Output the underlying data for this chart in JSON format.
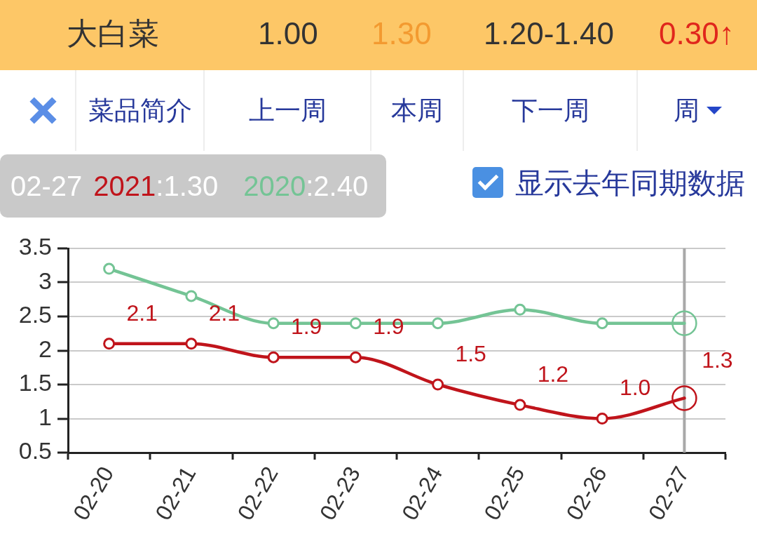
{
  "chart_data": {
    "type": "line",
    "categories": [
      "02-20",
      "02-21",
      "02-22",
      "02-23",
      "02-24",
      "02-25",
      "02-26",
      "02-27"
    ],
    "series": [
      {
        "name": "2021",
        "color": "#c0141b",
        "values": [
          2.1,
          2.1,
          1.9,
          1.9,
          1.5,
          1.2,
          1.0,
          1.3
        ],
        "value_labels": [
          "2.1",
          "2.1",
          "1.9",
          "1.9",
          "1.5",
          "1.2",
          "1.0",
          "1.3"
        ]
      },
      {
        "name": "2020",
        "color": "#74c495",
        "values": [
          3.2,
          2.8,
          2.4,
          2.4,
          2.4,
          2.6,
          2.4,
          2.4
        ]
      }
    ],
    "ylim": [
      0.5,
      3.5
    ],
    "yticks": [
      0.5,
      1,
      1.5,
      2,
      2.5,
      3,
      3.5
    ],
    "grid": "y",
    "legend": false,
    "marker": "circle",
    "line_style": "solid",
    "ref_lines": [
      {
        "axis": "x",
        "value": "02-27",
        "color": "#a8a8a8"
      }
    ],
    "annotations": [
      "大白菜",
      "1.00",
      "1.30",
      "1.20-1.40",
      "0.30↑",
      "菜品简介",
      "上一周",
      "本周",
      "下一周",
      "周",
      ":1.30",
      ":2.40",
      "显示去年同期数据"
    ]
  }
}
